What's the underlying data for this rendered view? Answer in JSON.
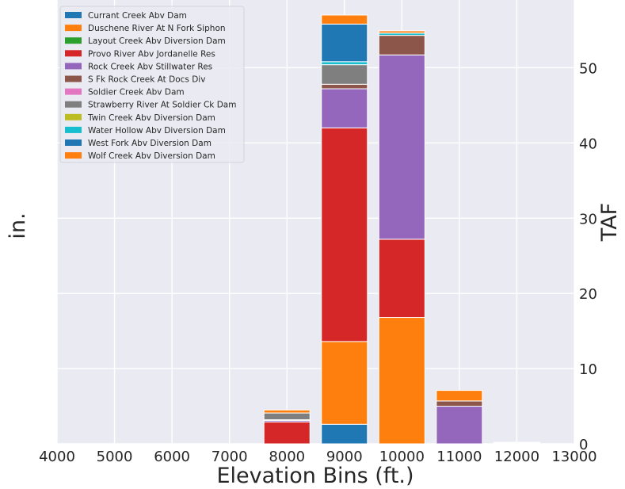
{
  "chart_data": {
    "type": "bar",
    "stacked": true,
    "xlabel": "Elevation Bins (ft.)",
    "ylabel_left": "in.",
    "ylabel_right": "TAF",
    "xlim": [
      4000,
      13000
    ],
    "ylim": [
      0,
      59
    ],
    "xticks": [
      "4000",
      "5000",
      "6000",
      "7000",
      "8000",
      "9000",
      "10000",
      "11000",
      "12000",
      "13000"
    ],
    "yticks_right": [
      "0",
      "10",
      "20",
      "30",
      "40",
      "50"
    ],
    "categories": [
      7000,
      8000,
      9000,
      10000,
      11000,
      12000
    ],
    "legend_position": "upper-left",
    "grid": true,
    "series": [
      {
        "name": "Currant Creek Abv Dam",
        "color": "#1f77b4",
        "values": [
          0,
          0,
          2.6,
          0,
          0,
          0
        ]
      },
      {
        "name": "Duschene River At N Fork Siphon",
        "color": "#ff7f0e",
        "values": [
          0,
          0,
          11.0,
          16.8,
          0,
          0
        ]
      },
      {
        "name": "Layout Creek Abv Diversion Dam",
        "color": "#2ca02c",
        "values": [
          0,
          0,
          0,
          0,
          0,
          0
        ]
      },
      {
        "name": "Provo River Abv Jordanelle Res",
        "color": "#d62728",
        "values": [
          0,
          2.9,
          28.4,
          10.4,
          0,
          0
        ]
      },
      {
        "name": "Rock Creek Abv Stillwater Res",
        "color": "#9467bd",
        "values": [
          0,
          0.2,
          5.2,
          24.5,
          5.0,
          0.1
        ]
      },
      {
        "name": "S Fk Rock Creek At Docs Div",
        "color": "#8c564b",
        "values": [
          0,
          0.1,
          0.6,
          2.6,
          0.7,
          0
        ]
      },
      {
        "name": "Soldier Creek Abv Dam",
        "color": "#e377c2",
        "values": [
          0,
          0,
          0,
          0,
          0,
          0
        ]
      },
      {
        "name": "Strawberry River At Soldier Ck Dam",
        "color": "#7f7f7f",
        "values": [
          0,
          0.9,
          2.6,
          0,
          0,
          0
        ]
      },
      {
        "name": "Twin Creek Abv Diversion Dam",
        "color": "#bcbd22",
        "values": [
          0,
          0,
          0,
          0,
          0,
          0
        ]
      },
      {
        "name": "Water Hollow Abv Diversion Dam",
        "color": "#17becf",
        "values": [
          0,
          0,
          0.4,
          0.3,
          0,
          0
        ]
      },
      {
        "name": "West Fork Abv Diversion Dam",
        "color": "#1f77b4",
        "values": [
          0,
          0,
          5.0,
          0,
          0,
          0
        ]
      },
      {
        "name": "Wolf Creek Abv Diversion Dam",
        "color": "#ff7f0e",
        "values": [
          0,
          0.4,
          1.2,
          0.3,
          1.4,
          0.1
        ]
      }
    ]
  }
}
